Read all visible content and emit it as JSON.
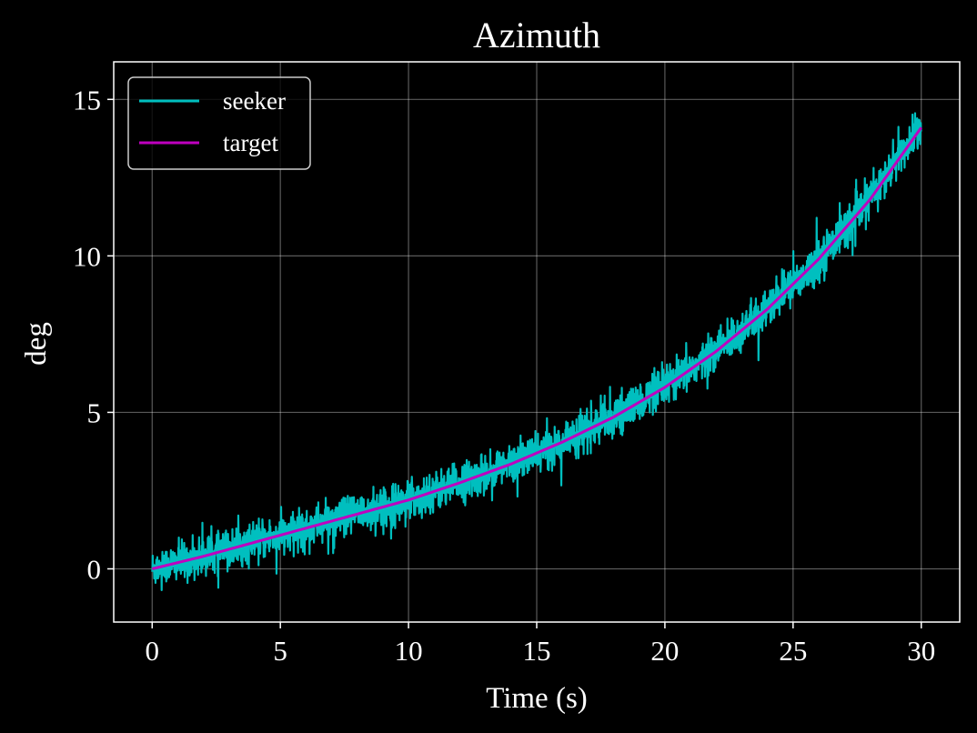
{
  "chart_data": {
    "type": "line",
    "title": "Azimuth",
    "xlabel": "Time (s)",
    "ylabel": "deg",
    "xlim": [
      -1.5,
      31.5
    ],
    "ylim": [
      -1.7,
      16.2
    ],
    "xticks": [
      0,
      5,
      10,
      15,
      20,
      25,
      30
    ],
    "yticks": [
      0,
      5,
      10,
      15
    ],
    "grid": true,
    "legend_position": "top-left",
    "background": "#000000",
    "series": [
      {
        "name": "seeker",
        "color": "#00bfbf",
        "noisy": true,
        "x": [
          0,
          2,
          4,
          6,
          8,
          10,
          12,
          14,
          16,
          18,
          20,
          22,
          24,
          26,
          28,
          30
        ],
        "y": [
          0.0,
          0.4,
          0.85,
          1.3,
          1.75,
          2.2,
          2.75,
          3.35,
          4.05,
          4.85,
          5.8,
          6.95,
          8.3,
          9.9,
          11.8,
          14.2
        ]
      },
      {
        "name": "target",
        "color": "#bf00bf",
        "noisy": false,
        "x": [
          0,
          2,
          4,
          6,
          8,
          10,
          12,
          14,
          16,
          18,
          20,
          22,
          24,
          26,
          28,
          30
        ],
        "y": [
          0.0,
          0.4,
          0.85,
          1.3,
          1.75,
          2.2,
          2.75,
          3.35,
          4.05,
          4.85,
          5.8,
          6.95,
          8.3,
          9.9,
          11.8,
          14.1
        ]
      }
    ]
  }
}
